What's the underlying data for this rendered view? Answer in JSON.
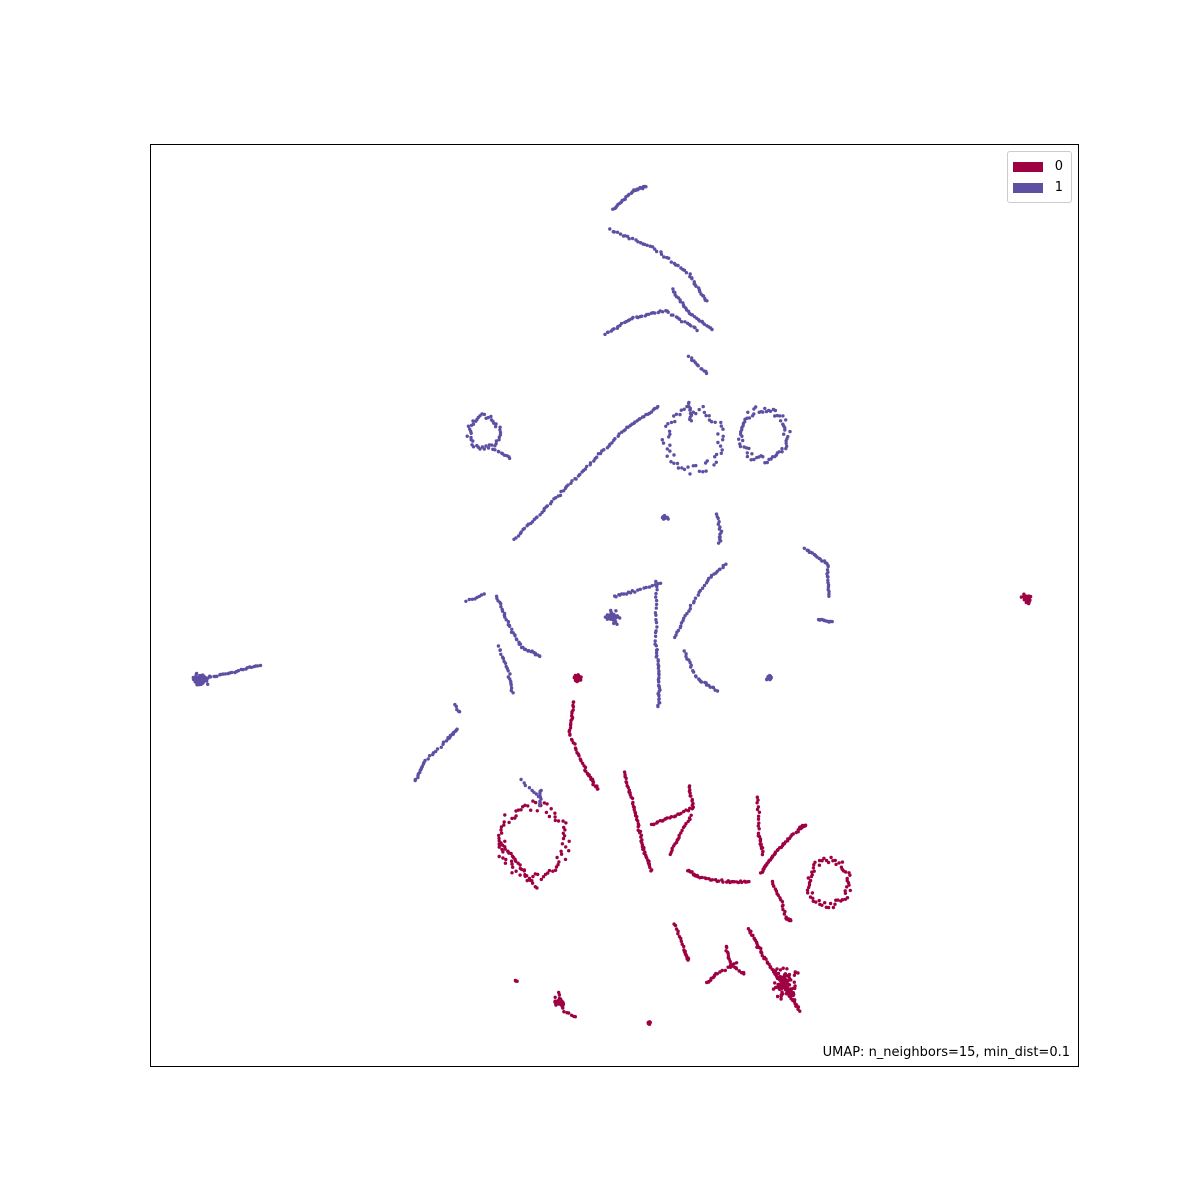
{
  "chart_data": {
    "type": "scatter",
    "title": "",
    "xlabel": "",
    "ylabel": "",
    "annotation": "UMAP: n_neighbors=15, min_dist=0.1",
    "axis_ticks": "hidden",
    "grid": false,
    "legend_placement": "top-right",
    "series": [
      {
        "name": "0",
        "color": "#9e0142",
        "clusters": [
          {
            "shape": "blob",
            "cx": 0.945,
            "cy": 0.507,
            "r": 0.008,
            "n": 40
          },
          {
            "shape": "blob",
            "cx": 0.46,
            "cy": 0.421,
            "r": 0.006,
            "n": 25
          },
          {
            "shape": "path",
            "points": [
              [
                0.456,
                0.396
              ],
              [
                0.451,
                0.36
              ],
              [
                0.47,
                0.32
              ],
              [
                0.482,
                0.3
              ]
            ],
            "n": 50
          },
          {
            "shape": "loop",
            "cx": 0.412,
            "cy": 0.244,
            "r": 0.035,
            "n": 80
          },
          {
            "shape": "path",
            "points": [
              [
                0.416,
                0.193
              ],
              [
                0.392,
                0.225
              ],
              [
                0.376,
                0.244
              ]
            ],
            "n": 25
          },
          {
            "shape": "path",
            "points": [
              [
                0.511,
                0.318
              ],
              [
                0.522,
                0.278
              ],
              [
                0.53,
                0.24
              ],
              [
                0.54,
                0.212
              ]
            ],
            "n": 55
          },
          {
            "shape": "path",
            "points": [
              [
                0.54,
                0.262
              ],
              [
                0.56,
                0.27
              ],
              [
                0.585,
                0.28
              ],
              [
                0.58,
                0.305
              ]
            ],
            "n": 35
          },
          {
            "shape": "path",
            "points": [
              [
                0.56,
                0.23
              ],
              [
                0.57,
                0.25
              ],
              [
                0.583,
                0.272
              ]
            ],
            "n": 20
          },
          {
            "shape": "path",
            "points": [
              [
                0.58,
                0.212
              ],
              [
                0.59,
                0.205
              ],
              [
                0.62,
                0.2
              ],
              [
                0.645,
                0.2
              ]
            ],
            "n": 40
          },
          {
            "shape": "path",
            "points": [
              [
                0.654,
                0.292
              ],
              [
                0.656,
                0.25
              ],
              [
                0.66,
                0.23
              ]
            ],
            "n": 25
          },
          {
            "shape": "path",
            "points": [
              [
                0.658,
                0.21
              ],
              [
                0.672,
                0.23
              ],
              [
                0.7,
                0.258
              ],
              [
                0.706,
                0.262
              ]
            ],
            "n": 60
          },
          {
            "shape": "loop",
            "cx": 0.731,
            "cy": 0.199,
            "r": 0.022,
            "n": 60
          },
          {
            "shape": "path",
            "points": [
              [
                0.67,
                0.2
              ],
              [
                0.68,
                0.18
              ],
              [
                0.685,
                0.16
              ],
              [
                0.69,
                0.158
              ]
            ],
            "n": 25
          },
          {
            "shape": "path",
            "points": [
              [
                0.645,
                0.149
              ],
              [
                0.66,
                0.12
              ],
              [
                0.68,
                0.09
              ],
              [
                0.7,
                0.06
              ]
            ],
            "n": 55
          },
          {
            "shape": "blob",
            "cx": 0.685,
            "cy": 0.09,
            "r": 0.025,
            "n": 90
          },
          {
            "shape": "path",
            "points": [
              [
                0.62,
                0.13
              ],
              [
                0.625,
                0.11
              ],
              [
                0.64,
                0.1
              ]
            ],
            "n": 20
          },
          {
            "shape": "path",
            "points": [
              [
                0.6,
                0.09
              ],
              [
                0.61,
                0.1
              ],
              [
                0.632,
                0.112
              ]
            ],
            "n": 18
          },
          {
            "shape": "path",
            "points": [
              [
                0.565,
                0.155
              ],
              [
                0.575,
                0.125
              ],
              [
                0.58,
                0.115
              ]
            ],
            "n": 22
          },
          {
            "shape": "blob",
            "cx": 0.44,
            "cy": 0.07,
            "r": 0.01,
            "n": 25
          },
          {
            "shape": "path",
            "points": [
              [
                0.44,
                0.08
              ],
              [
                0.445,
                0.06
              ],
              [
                0.458,
                0.052
              ]
            ],
            "n": 12
          },
          {
            "shape": "blob",
            "cx": 0.538,
            "cy": 0.047,
            "r": 0.003,
            "n": 8
          },
          {
            "shape": "blob",
            "cx": 0.394,
            "cy": 0.092,
            "r": 0.002,
            "n": 3
          }
        ]
      },
      {
        "name": "1",
        "color": "#5e4fa2",
        "clusters": [
          {
            "shape": "blob",
            "cx": 0.054,
            "cy": 0.42,
            "r": 0.011,
            "n": 80
          },
          {
            "shape": "path",
            "points": [
              [
                0.062,
                0.422
              ],
              [
                0.09,
                0.428
              ],
              [
                0.118,
                0.435
              ]
            ],
            "n": 25
          },
          {
            "shape": "path",
            "points": [
              [
                0.498,
                0.93
              ],
              [
                0.52,
                0.95
              ],
              [
                0.533,
                0.955
              ]
            ],
            "n": 30
          },
          {
            "shape": "path",
            "points": [
              [
                0.495,
                0.908
              ],
              [
                0.54,
                0.89
              ],
              [
                0.58,
                0.86
              ],
              [
                0.6,
                0.83
              ]
            ],
            "n": 50
          },
          {
            "shape": "path",
            "points": [
              [
                0.49,
                0.795
              ],
              [
                0.52,
                0.812
              ],
              [
                0.555,
                0.82
              ],
              [
                0.59,
                0.8
              ]
            ],
            "n": 45
          },
          {
            "shape": "path",
            "points": [
              [
                0.562,
                0.843
              ],
              [
                0.58,
                0.818
              ],
              [
                0.605,
                0.8
              ]
            ],
            "n": 28
          },
          {
            "shape": "path",
            "points": [
              [
                0.58,
                0.77
              ],
              [
                0.59,
                0.76
              ],
              [
                0.6,
                0.752
              ]
            ],
            "n": 12
          },
          {
            "shape": "path",
            "points": [
              [
                0.392,
                0.572
              ],
              [
                0.43,
                0.61
              ],
              [
                0.47,
                0.65
              ],
              [
                0.51,
                0.69
              ],
              [
                0.547,
                0.716
              ]
            ],
            "n": 80
          },
          {
            "shape": "loop",
            "cx": 0.585,
            "cy": 0.68,
            "r": 0.03,
            "n": 60
          },
          {
            "shape": "path",
            "points": [
              [
                0.58,
                0.72
              ],
              [
                0.583,
                0.7
              ]
            ],
            "n": 10
          },
          {
            "shape": "loop",
            "cx": 0.661,
            "cy": 0.686,
            "r": 0.025,
            "n": 70
          },
          {
            "shape": "loop",
            "cx": 0.359,
            "cy": 0.688,
            "r": 0.016,
            "n": 45
          },
          {
            "shape": "path",
            "points": [
              [
                0.37,
                0.67
              ],
              [
                0.388,
                0.66
              ]
            ],
            "n": 10
          },
          {
            "shape": "path",
            "points": [
              [
                0.61,
                0.6
              ],
              [
                0.615,
                0.58
              ],
              [
                0.613,
                0.568
              ]
            ],
            "n": 15
          },
          {
            "shape": "blob",
            "cx": 0.555,
            "cy": 0.595,
            "r": 0.006,
            "n": 12
          },
          {
            "shape": "path",
            "points": [
              [
                0.705,
                0.562
              ],
              [
                0.73,
                0.545
              ],
              [
                0.731,
                0.51
              ]
            ],
            "n": 30
          },
          {
            "shape": "path",
            "points": [
              [
                0.72,
                0.485
              ],
              [
                0.735,
                0.482
              ]
            ],
            "n": 10
          },
          {
            "shape": "path",
            "points": [
              [
                0.545,
                0.525
              ],
              [
                0.545,
                0.46
              ],
              [
                0.548,
                0.42
              ],
              [
                0.548,
                0.39
              ]
            ],
            "n": 50
          },
          {
            "shape": "path",
            "points": [
              [
                0.5,
                0.51
              ],
              [
                0.52,
                0.515
              ],
              [
                0.55,
                0.525
              ]
            ],
            "n": 20
          },
          {
            "shape": "blob",
            "cx": 0.498,
            "cy": 0.487,
            "r": 0.014,
            "n": 30
          },
          {
            "shape": "path",
            "points": [
              [
                0.565,
                0.465
              ],
              [
                0.58,
                0.495
              ],
              [
                0.6,
                0.527
              ],
              [
                0.62,
                0.545
              ]
            ],
            "n": 35
          },
          {
            "shape": "path",
            "points": [
              [
                0.575,
                0.45
              ],
              [
                0.59,
                0.42
              ],
              [
                0.61,
                0.408
              ]
            ],
            "n": 25
          },
          {
            "shape": "blob",
            "cx": 0.667,
            "cy": 0.421,
            "r": 0.006,
            "n": 15
          },
          {
            "shape": "path",
            "points": [
              [
                0.373,
                0.51
              ],
              [
                0.385,
                0.48
              ],
              [
                0.4,
                0.455
              ],
              [
                0.42,
                0.445
              ]
            ],
            "n": 40
          },
          {
            "shape": "path",
            "points": [
              [
                0.375,
                0.455
              ],
              [
                0.385,
                0.43
              ],
              [
                0.39,
                0.405
              ]
            ],
            "n": 20
          },
          {
            "shape": "path",
            "points": [
              [
                0.34,
                0.505
              ],
              [
                0.36,
                0.512
              ]
            ],
            "n": 8
          },
          {
            "shape": "path",
            "points": [
              [
                0.285,
                0.31
              ],
              [
                0.295,
                0.33
              ],
              [
                0.32,
                0.355
              ],
              [
                0.33,
                0.365
              ]
            ],
            "n": 35
          },
          {
            "shape": "path",
            "points": [
              [
                0.333,
                0.384
              ],
              [
                0.328,
                0.392
              ]
            ],
            "n": 5
          },
          {
            "shape": "path",
            "points": [
              [
                0.42,
                0.3
              ],
              [
                0.42,
                0.282
              ]
            ],
            "n": 10
          },
          {
            "shape": "path",
            "points": [
              [
                0.4,
                0.31
              ],
              [
                0.418,
                0.292
              ]
            ],
            "n": 8
          }
        ]
      }
    ]
  },
  "legend": {
    "items": [
      {
        "label": "0",
        "color": "#9e0142"
      },
      {
        "label": "1",
        "color": "#5e4fa2"
      }
    ]
  }
}
